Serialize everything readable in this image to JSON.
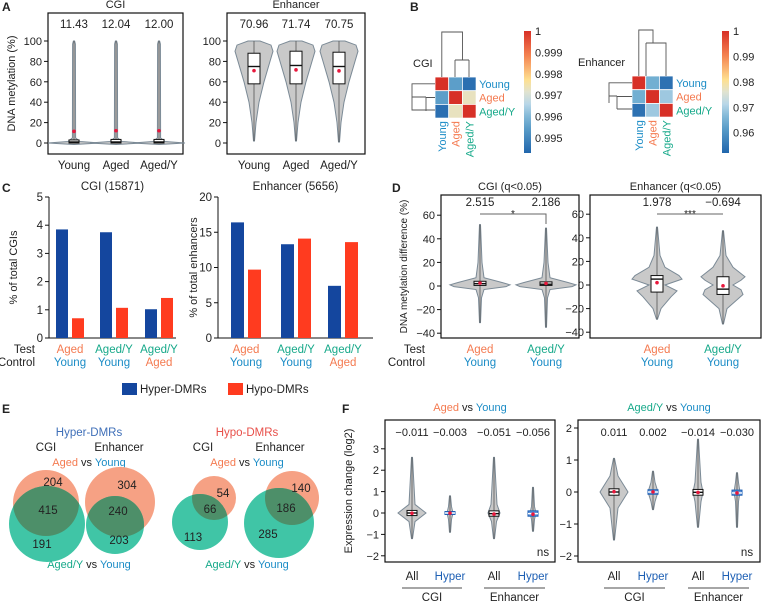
{
  "panel_letters": [
    "A",
    "B",
    "C",
    "D",
    "E",
    "F"
  ],
  "colors": {
    "young": "#1b8cc6",
    "aged": "#f47a50",
    "aged_y": "#17a98a",
    "hyper": "#14469e",
    "hypo": "#ff3b1f",
    "hyper_title": "#3f6fb8",
    "hypo_title": "#e8504a",
    "violin_fill": "#c9c9c9",
    "violin_stroke": "#7b8a96",
    "mean_marker": "#e8173c",
    "venn_aged": "#f6a184",
    "venn_aged_y": "#2bbf9c",
    "venn_overlap": "#4f8a64"
  },
  "labels": {
    "test": "Test",
    "control": "Control",
    "legend_hyper": "Hyper-DMRs",
    "legend_hypo": "Hypo-DMRs"
  },
  "chart_data": [
    {
      "panel": "A",
      "type": "violin",
      "title": "CGI",
      "ylabel": "DNA metylation (%)",
      "ylim": [
        -8,
        110
      ],
      "yticks": [
        0,
        20,
        40,
        60,
        80,
        100
      ],
      "categories": [
        "Young",
        "Aged",
        "Aged/Y"
      ],
      "mean_labels": [
        "11.43",
        "12.04",
        "12.00"
      ],
      "stats": [
        {
          "min": 0,
          "q1": 0,
          "median": 1,
          "q3": 3,
          "max": 100,
          "mean": 11.43
        },
        {
          "min": 0,
          "q1": 0,
          "median": 1,
          "q3": 3.5,
          "max": 100,
          "mean": 12.04
        },
        {
          "min": 0,
          "q1": 0,
          "median": 1,
          "q3": 3.5,
          "max": 100,
          "mean": 12.0
        }
      ]
    },
    {
      "panel": "A",
      "type": "violin",
      "title": "Enhancer",
      "ylabel": "",
      "ylim": [
        -8,
        110
      ],
      "yticks": [
        0,
        20,
        40,
        60,
        80,
        100
      ],
      "categories": [
        "Young",
        "Aged",
        "Aged/Y"
      ],
      "mean_labels": [
        "70.96",
        "71.74",
        "70.75"
      ],
      "stats": [
        {
          "min": 2,
          "q1": 58,
          "median": 75,
          "q3": 88,
          "max": 100,
          "mean": 70.96
        },
        {
          "min": 2,
          "q1": 58,
          "median": 76,
          "q3": 90,
          "max": 100,
          "mean": 71.74
        },
        {
          "min": 1,
          "q1": 58,
          "median": 75,
          "q3": 89,
          "max": 100,
          "mean": 70.75
        }
      ]
    },
    {
      "panel": "B",
      "type": "heatmap",
      "title": "CGI",
      "rows": [
        "Young",
        "Aged",
        "Aged/Y"
      ],
      "cols": [
        "Young",
        "Aged",
        "Aged/Y"
      ],
      "values": [
        [
          1,
          0.9955,
          0.9945
        ],
        [
          0.9955,
          1,
          0.9973
        ],
        [
          0.9945,
          0.9973,
          1
        ]
      ],
      "colorbar": {
        "range": [
          0.9943,
          1
        ],
        "ticks": [
          "1",
          "0.999",
          "0.998",
          "0.997",
          "0.996",
          "0.995"
        ],
        "tick_values": [
          1,
          0.999,
          0.998,
          0.997,
          0.996,
          0.995
        ]
      },
      "dendrogram": true
    },
    {
      "panel": "B",
      "type": "heatmap",
      "title": "Enhancer",
      "rows": [
        "Young",
        "Aged",
        "Aged/Y"
      ],
      "cols": [
        "Young",
        "Aged",
        "Aged/Y"
      ],
      "values": [
        [
          1,
          0.965,
          0.954
        ],
        [
          0.965,
          1,
          0.969
        ],
        [
          0.954,
          0.969,
          1
        ]
      ],
      "colorbar": {
        "range": [
          0.952,
          1
        ],
        "ticks": [
          "1",
          "0.99",
          "0.98",
          "0.97",
          "0.96"
        ],
        "tick_values": [
          1,
          0.99,
          0.98,
          0.97,
          0.96
        ]
      },
      "dendrogram": true
    },
    {
      "panel": "C",
      "type": "bar",
      "title": "CGI (15871)",
      "ylabel": "% of total CGIs",
      "ylim": [
        0,
        5
      ],
      "yticks": [
        0,
        1,
        2,
        3,
        4,
        5
      ],
      "categories": [
        {
          "test": "Aged",
          "control": "Young"
        },
        {
          "test": "Aged/Y",
          "control": "Young"
        },
        {
          "test": "Aged/Y",
          "control": "Aged"
        }
      ],
      "series": [
        {
          "name": "Hyper-DMRs",
          "values": [
            3.85,
            3.75,
            1.02
          ]
        },
        {
          "name": "Hypo-DMRs",
          "values": [
            0.7,
            1.07,
            1.42
          ]
        }
      ]
    },
    {
      "panel": "C",
      "type": "bar",
      "title": "Enhancer (5656)",
      "ylabel": "% of total enhancers",
      "ylim": [
        0,
        20
      ],
      "yticks": [
        0,
        5,
        10,
        15,
        20
      ],
      "categories": [
        {
          "test": "Aged",
          "control": "Young"
        },
        {
          "test": "Aged/Y",
          "control": "Young"
        },
        {
          "test": "Aged/Y",
          "control": "Aged"
        }
      ],
      "series": [
        {
          "name": "Hyper-DMRs",
          "values": [
            16.4,
            13.3,
            7.4
          ]
        },
        {
          "name": "Hypo-DMRs",
          "values": [
            9.7,
            14.1,
            13.6
          ]
        }
      ],
      "legend": "bottom"
    },
    {
      "panel": "D",
      "type": "violin",
      "title": "CGI (q<0.05)",
      "ylabel": "DNA metylation difference (%)",
      "ylim": [
        -44,
        74
      ],
      "yticks": [
        -40,
        -20,
        0,
        20,
        40,
        60
      ],
      "categories": [
        {
          "test": "Aged",
          "control": "Young"
        },
        {
          "test": "Aged/Y",
          "control": "Young"
        }
      ],
      "mean_labels": [
        "2.515",
        "2.186"
      ],
      "significance": "*",
      "stats": [
        {
          "min": -31,
          "q1": 0.5,
          "median": 2,
          "q3": 4,
          "max": 52,
          "mean": 2.515
        },
        {
          "min": -35,
          "q1": 0.5,
          "median": 1.5,
          "q3": 3.5,
          "max": 49,
          "mean": 2.186
        }
      ]
    },
    {
      "panel": "D",
      "type": "violin",
      "title": "Enhancer (q<0.05)",
      "ylabel": "",
      "ylim": [
        -44,
        74
      ],
      "yticks": [
        -40,
        -20,
        0,
        20,
        40,
        60
      ],
      "categories": [
        {
          "test": "Aged",
          "control": "Young"
        },
        {
          "test": "Aged/Y",
          "control": "Young"
        }
      ],
      "mean_labels": [
        "1.978",
        "−0.694"
      ],
      "significance": "***",
      "stats": [
        {
          "min": -29,
          "q1": -6,
          "median": 5,
          "q3": 8,
          "max": 49,
          "mean": 1.978
        },
        {
          "min": -33,
          "q1": -8,
          "median": -3.5,
          "q3": 7,
          "max": 46,
          "mean": -0.694
        }
      ]
    },
    {
      "panel": "E",
      "type": "venn",
      "groups": [
        {
          "title": "Hyper-DMRs",
          "top_label": {
            "a": "Aged",
            "vs": "vs",
            "b": "Young"
          },
          "bottom_label": {
            "a": "Aged/Y",
            "vs": "vs",
            "b": "Young"
          },
          "sets": [
            {
              "name": "CGI",
              "only_top": 204,
              "overlap": 415,
              "only_bottom": 191
            },
            {
              "name": "Enhancer",
              "only_top": 304,
              "overlap": 240,
              "only_bottom": 203
            }
          ]
        },
        {
          "title": "Hypo-DMRs",
          "top_label": {
            "a": "Aged",
            "vs": "vs",
            "b": "Young"
          },
          "bottom_label": {
            "a": "Aged/Y",
            "vs": "vs",
            "b": "Young"
          },
          "sets": [
            {
              "name": "CGI",
              "only_top": 54,
              "overlap": 66,
              "only_bottom": 113
            },
            {
              "name": "Enhancer",
              "only_top": 140,
              "overlap": 186,
              "only_bottom": 285
            }
          ]
        }
      ]
    },
    {
      "panel": "F",
      "type": "violin",
      "title": {
        "a": "Aged",
        "vs": "vs",
        "b": "Young"
      },
      "ylabel": "Expression change (log2)",
      "ylim": [
        -2.3,
        3.4
      ],
      "yticks": [
        -2,
        -1,
        0,
        1,
        2,
        3
      ],
      "categories": [
        "All",
        "Hyper",
        "All",
        "Hyper"
      ],
      "groups": [
        "CGI",
        "Enhancer"
      ],
      "mean_labels": [
        "−0.011",
        "−0.003",
        "−0.051",
        "−0.056"
      ],
      "significance": "ns",
      "stats": [
        {
          "min": -1.2,
          "q1": -0.12,
          "median": 0,
          "q3": 0.12,
          "max": 2.6,
          "mean": -0.011
        },
        {
          "min": -0.9,
          "q1": -0.07,
          "median": 0,
          "q3": 0.07,
          "max": 0.8,
          "mean": -0.003
        },
        {
          "min": -1.2,
          "q1": -0.15,
          "median": -0.03,
          "q3": 0.1,
          "max": 2.6,
          "mean": -0.051
        },
        {
          "min": -0.85,
          "q1": -0.15,
          "median": -0.03,
          "q3": 0.1,
          "max": 1.2,
          "mean": -0.056
        }
      ]
    },
    {
      "panel": "F",
      "type": "violin",
      "title": {
        "a": "Aged/Y",
        "vs": "vs",
        "b": "Young"
      },
      "ylabel": "",
      "ylim": [
        -2.2,
        2.2
      ],
      "yticks": [
        -2,
        -1,
        0,
        1,
        2
      ],
      "categories": [
        "All",
        "Hyper",
        "All",
        "Hyper"
      ],
      "groups": [
        "CGI",
        "Enhancer"
      ],
      "mean_labels": [
        "0.011",
        "0.002",
        "−0.014",
        "−0.030"
      ],
      "significance": "ns",
      "stats": [
        {
          "min": -1.5,
          "q1": -0.1,
          "median": 0,
          "q3": 0.1,
          "max": 1.05,
          "mean": 0.011
        },
        {
          "min": -0.55,
          "q1": -0.07,
          "median": 0,
          "q3": 0.07,
          "max": 0.65,
          "mean": 0.002
        },
        {
          "min": -1.1,
          "q1": -0.1,
          "median": -0.01,
          "q3": 0.08,
          "max": 1.65,
          "mean": -0.014
        },
        {
          "min": -1.1,
          "q1": -0.1,
          "median": -0.03,
          "q3": 0.06,
          "max": 0.6,
          "mean": -0.03
        }
      ]
    }
  ]
}
